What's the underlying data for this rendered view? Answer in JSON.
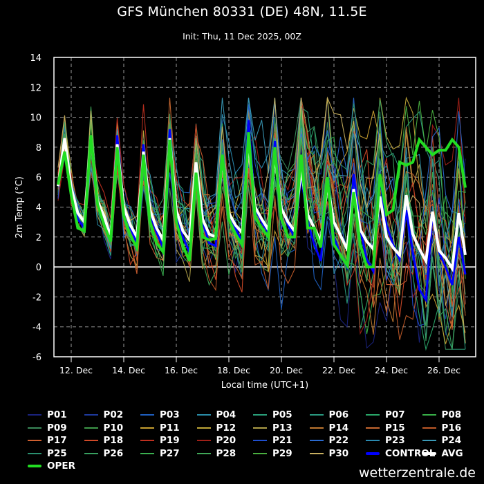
{
  "header": {
    "title": "GFS München 80331 (DE) 48N, 11.5E",
    "subtitle": "Init: Thu, 11 Dec 2025, 00Z"
  },
  "credit": "wetterzentrale.de",
  "chart_data": {
    "type": "line",
    "title": "GFS München 80331 (DE) 48N, 11.5E",
    "subtitle": "Init: Thu, 11 Dec 2025, 00Z",
    "xlabel": "Local time (UTC+1)",
    "ylabel": "2m Temp (°C)",
    "ylim": [
      -6,
      14
    ],
    "yticks": [
      -6,
      -4,
      -2,
      0,
      2,
      4,
      6,
      8,
      10,
      12,
      14
    ],
    "xticks": [
      "12. Dec",
      "14. Dec",
      "16. Dec",
      "18. Dec",
      "20. Dec",
      "22. Dec",
      "24. Dec",
      "26. Dec"
    ],
    "grid": true,
    "legend_position": "below",
    "x_step_hours": 6,
    "x_start": "11 Dec 13:00 local",
    "series": [
      {
        "name": "OPER",
        "color": "#22dd22",
        "width": 4,
        "values": [
          5.5,
          7.7,
          4.8,
          2.6,
          2.4,
          8.8,
          4.2,
          2.8,
          1.7,
          8.0,
          3.4,
          2.1,
          1.3,
          7.5,
          3.0,
          1.6,
          1.0,
          8.5,
          3.0,
          1.4,
          0.4,
          6.3,
          2.0,
          1.8,
          1.9,
          7.5,
          3.2,
          2.2,
          1.5,
          9.0,
          3.3,
          2.6,
          2.0,
          8.0,
          3.2,
          2.0,
          2.0,
          7.5,
          2.6,
          2.6,
          1.3,
          6.0,
          1.5,
          0.8,
          0.1,
          5.0,
          1.5,
          0.0,
          0.0,
          6.2,
          3.5,
          3.8,
          7.0,
          6.8,
          7.0,
          8.5,
          8.0,
          7.5,
          7.8,
          7.8,
          8.5,
          8.0,
          5.3
        ]
      },
      {
        "name": "AVG",
        "color": "#ffffff",
        "width": 4,
        "values": [
          5.4,
          8.6,
          5.3,
          3.6,
          3.0,
          8.8,
          4.4,
          3.4,
          2.0,
          8.2,
          4.0,
          2.8,
          2.0,
          7.7,
          3.8,
          2.6,
          1.8,
          8.6,
          3.8,
          2.4,
          1.8,
          7.0,
          3.2,
          2.2,
          2.0,
          7.3,
          3.6,
          2.8,
          2.3,
          8.4,
          4.0,
          3.2,
          2.5,
          7.5,
          3.9,
          3.0,
          2.4,
          6.6,
          3.5,
          2.6,
          1.7,
          5.5,
          3.0,
          2.1,
          1.2,
          5.2,
          2.5,
          1.7,
          1.2,
          4.7,
          2.0,
          1.3,
          0.8,
          4.8,
          2.2,
          1.2,
          0.4,
          3.7,
          1.1,
          0.6,
          -0.1,
          3.6,
          0.8
        ]
      },
      {
        "name": "CONTROL",
        "color": "#0000ff",
        "width": 3,
        "values": [
          5.5,
          7.5,
          5.0,
          3.2,
          2.6,
          8.6,
          4.4,
          3.3,
          1.9,
          8.8,
          4.0,
          2.6,
          1.6,
          8.2,
          3.6,
          2.3,
          1.3,
          9.2,
          3.4,
          2.0,
          1.0,
          6.8,
          3.0,
          1.6,
          1.4,
          7.2,
          3.5,
          2.6,
          1.7,
          9.8,
          3.9,
          3.0,
          2.3,
          8.4,
          4.0,
          2.8,
          2.0,
          6.2,
          3.0,
          1.5,
          0.4,
          5.8,
          2.0,
          0.8,
          0.0,
          6.2,
          2.5,
          0.5,
          -0.3,
          6.0,
          2.8,
          1.5,
          0.5,
          3.8,
          1.0,
          -1.5,
          -2.2,
          3.5,
          1.0,
          0.0,
          -1.2,
          2.0,
          -0.5
        ]
      }
    ],
    "members": [
      "P01",
      "P02",
      "P03",
      "P04",
      "P05",
      "P06",
      "P07",
      "P08",
      "P09",
      "P10",
      "P11",
      "P12",
      "P13",
      "P14",
      "P15",
      "P16",
      "P17",
      "P18",
      "P19",
      "P20",
      "P21",
      "P22",
      "P23",
      "P24",
      "P25",
      "P26",
      "P27",
      "P28",
      "P29",
      "P30"
    ],
    "member_colors": [
      "#1a237e",
      "#1e3a9e",
      "#1f5fbf",
      "#2a8ca8",
      "#2aa07a",
      "#2a9a80",
      "#2aa86a",
      "#38b048",
      "#3a8a5a",
      "#3f9a4a",
      "#c8a030",
      "#c0a838",
      "#b0a048",
      "#c07830",
      "#c86830",
      "#c05a28",
      "#d06030",
      "#d04a28",
      "#c03020",
      "#a02018",
      "#1f4fd0",
      "#2a6ad0",
      "#2a8ab0",
      "#3a9ab8",
      "#2a9070",
      "#38a060",
      "#3ab050",
      "#40a858",
      "#4ab040",
      "#c8b060"
    ],
    "member_spread": "members diverge from ~18 Dec; range roughly -5 to 11 °C by 26 Dec"
  },
  "legend": {
    "items": [
      {
        "label": "P01",
        "color": "#1a237e"
      },
      {
        "label": "P02",
        "color": "#1e3a9e"
      },
      {
        "label": "P03",
        "color": "#1f5fbf"
      },
      {
        "label": "P04",
        "color": "#2a8ca8"
      },
      {
        "label": "P05",
        "color": "#2aa07a"
      },
      {
        "label": "P06",
        "color": "#2a9a80"
      },
      {
        "label": "P07",
        "color": "#2aa86a"
      },
      {
        "label": "P08",
        "color": "#38b048"
      },
      {
        "label": "P09",
        "color": "#3a8a5a"
      },
      {
        "label": "P10",
        "color": "#3f9a4a"
      },
      {
        "label": "P11",
        "color": "#c8a030"
      },
      {
        "label": "P12",
        "color": "#c0a838"
      },
      {
        "label": "P13",
        "color": "#b0a048"
      },
      {
        "label": "P14",
        "color": "#c07830"
      },
      {
        "label": "P15",
        "color": "#c86830"
      },
      {
        "label": "P16",
        "color": "#c05a28"
      },
      {
        "label": "P17",
        "color": "#d06030"
      },
      {
        "label": "P18",
        "color": "#d04a28"
      },
      {
        "label": "P19",
        "color": "#c03020"
      },
      {
        "label": "P20",
        "color": "#a02018"
      },
      {
        "label": "P21",
        "color": "#1f4fd0"
      },
      {
        "label": "P22",
        "color": "#2a6ad0"
      },
      {
        "label": "P23",
        "color": "#2a8ab0"
      },
      {
        "label": "P24",
        "color": "#3a9ab8"
      },
      {
        "label": "P25",
        "color": "#2a9070"
      },
      {
        "label": "P26",
        "color": "#38a060"
      },
      {
        "label": "P27",
        "color": "#3ab050"
      },
      {
        "label": "P28",
        "color": "#40a858"
      },
      {
        "label": "P29",
        "color": "#4ab040"
      },
      {
        "label": "P30",
        "color": "#c8b060"
      },
      {
        "label": "CONTROL",
        "color": "#0000ff",
        "thick": true
      },
      {
        "label": "AVG",
        "color": "#ffffff",
        "thick": true
      },
      {
        "label": "OPER",
        "color": "#22dd22",
        "thick": true
      }
    ]
  }
}
